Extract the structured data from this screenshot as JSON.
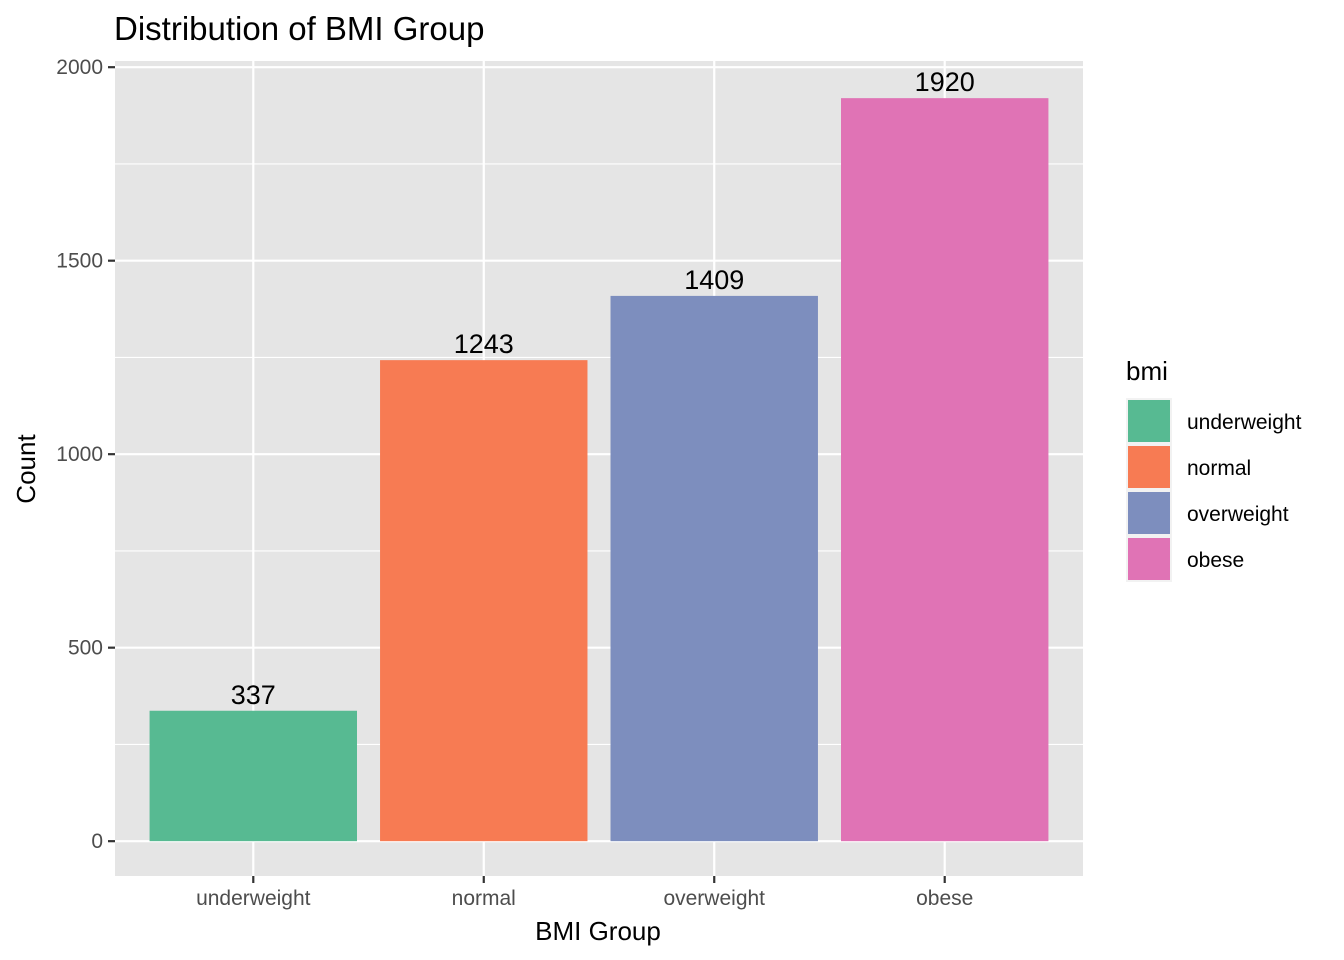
{
  "chart_data": {
    "type": "bar",
    "title": "Distribution of BMI Group",
    "xlabel": "BMI Group",
    "ylabel": "Count",
    "categories": [
      "underweight",
      "normal",
      "overweight",
      "obese"
    ],
    "values": [
      337,
      1243,
      1409,
      1920
    ],
    "data_labels": [
      "337",
      "1243",
      "1409",
      "1920"
    ],
    "colors": [
      "#57BA92",
      "#F77B53",
      "#7D8EBE",
      "#E073B5"
    ],
    "ylim": [
      -90,
      2016
    ],
    "yticks": [
      0,
      500,
      1000,
      1500,
      2000
    ],
    "ytick_labels": [
      "0",
      "500",
      "1000",
      "1500",
      "2000"
    ],
    "grid": true,
    "legend": {
      "title": "bmi",
      "placement": "right",
      "entries": [
        "underweight",
        "normal",
        "overweight",
        "obese"
      ]
    }
  },
  "theme": {
    "panel_background": "#E5E5E5",
    "grid_color": "#FFFFFF",
    "tick_text_color": "#4D4D4D"
  }
}
